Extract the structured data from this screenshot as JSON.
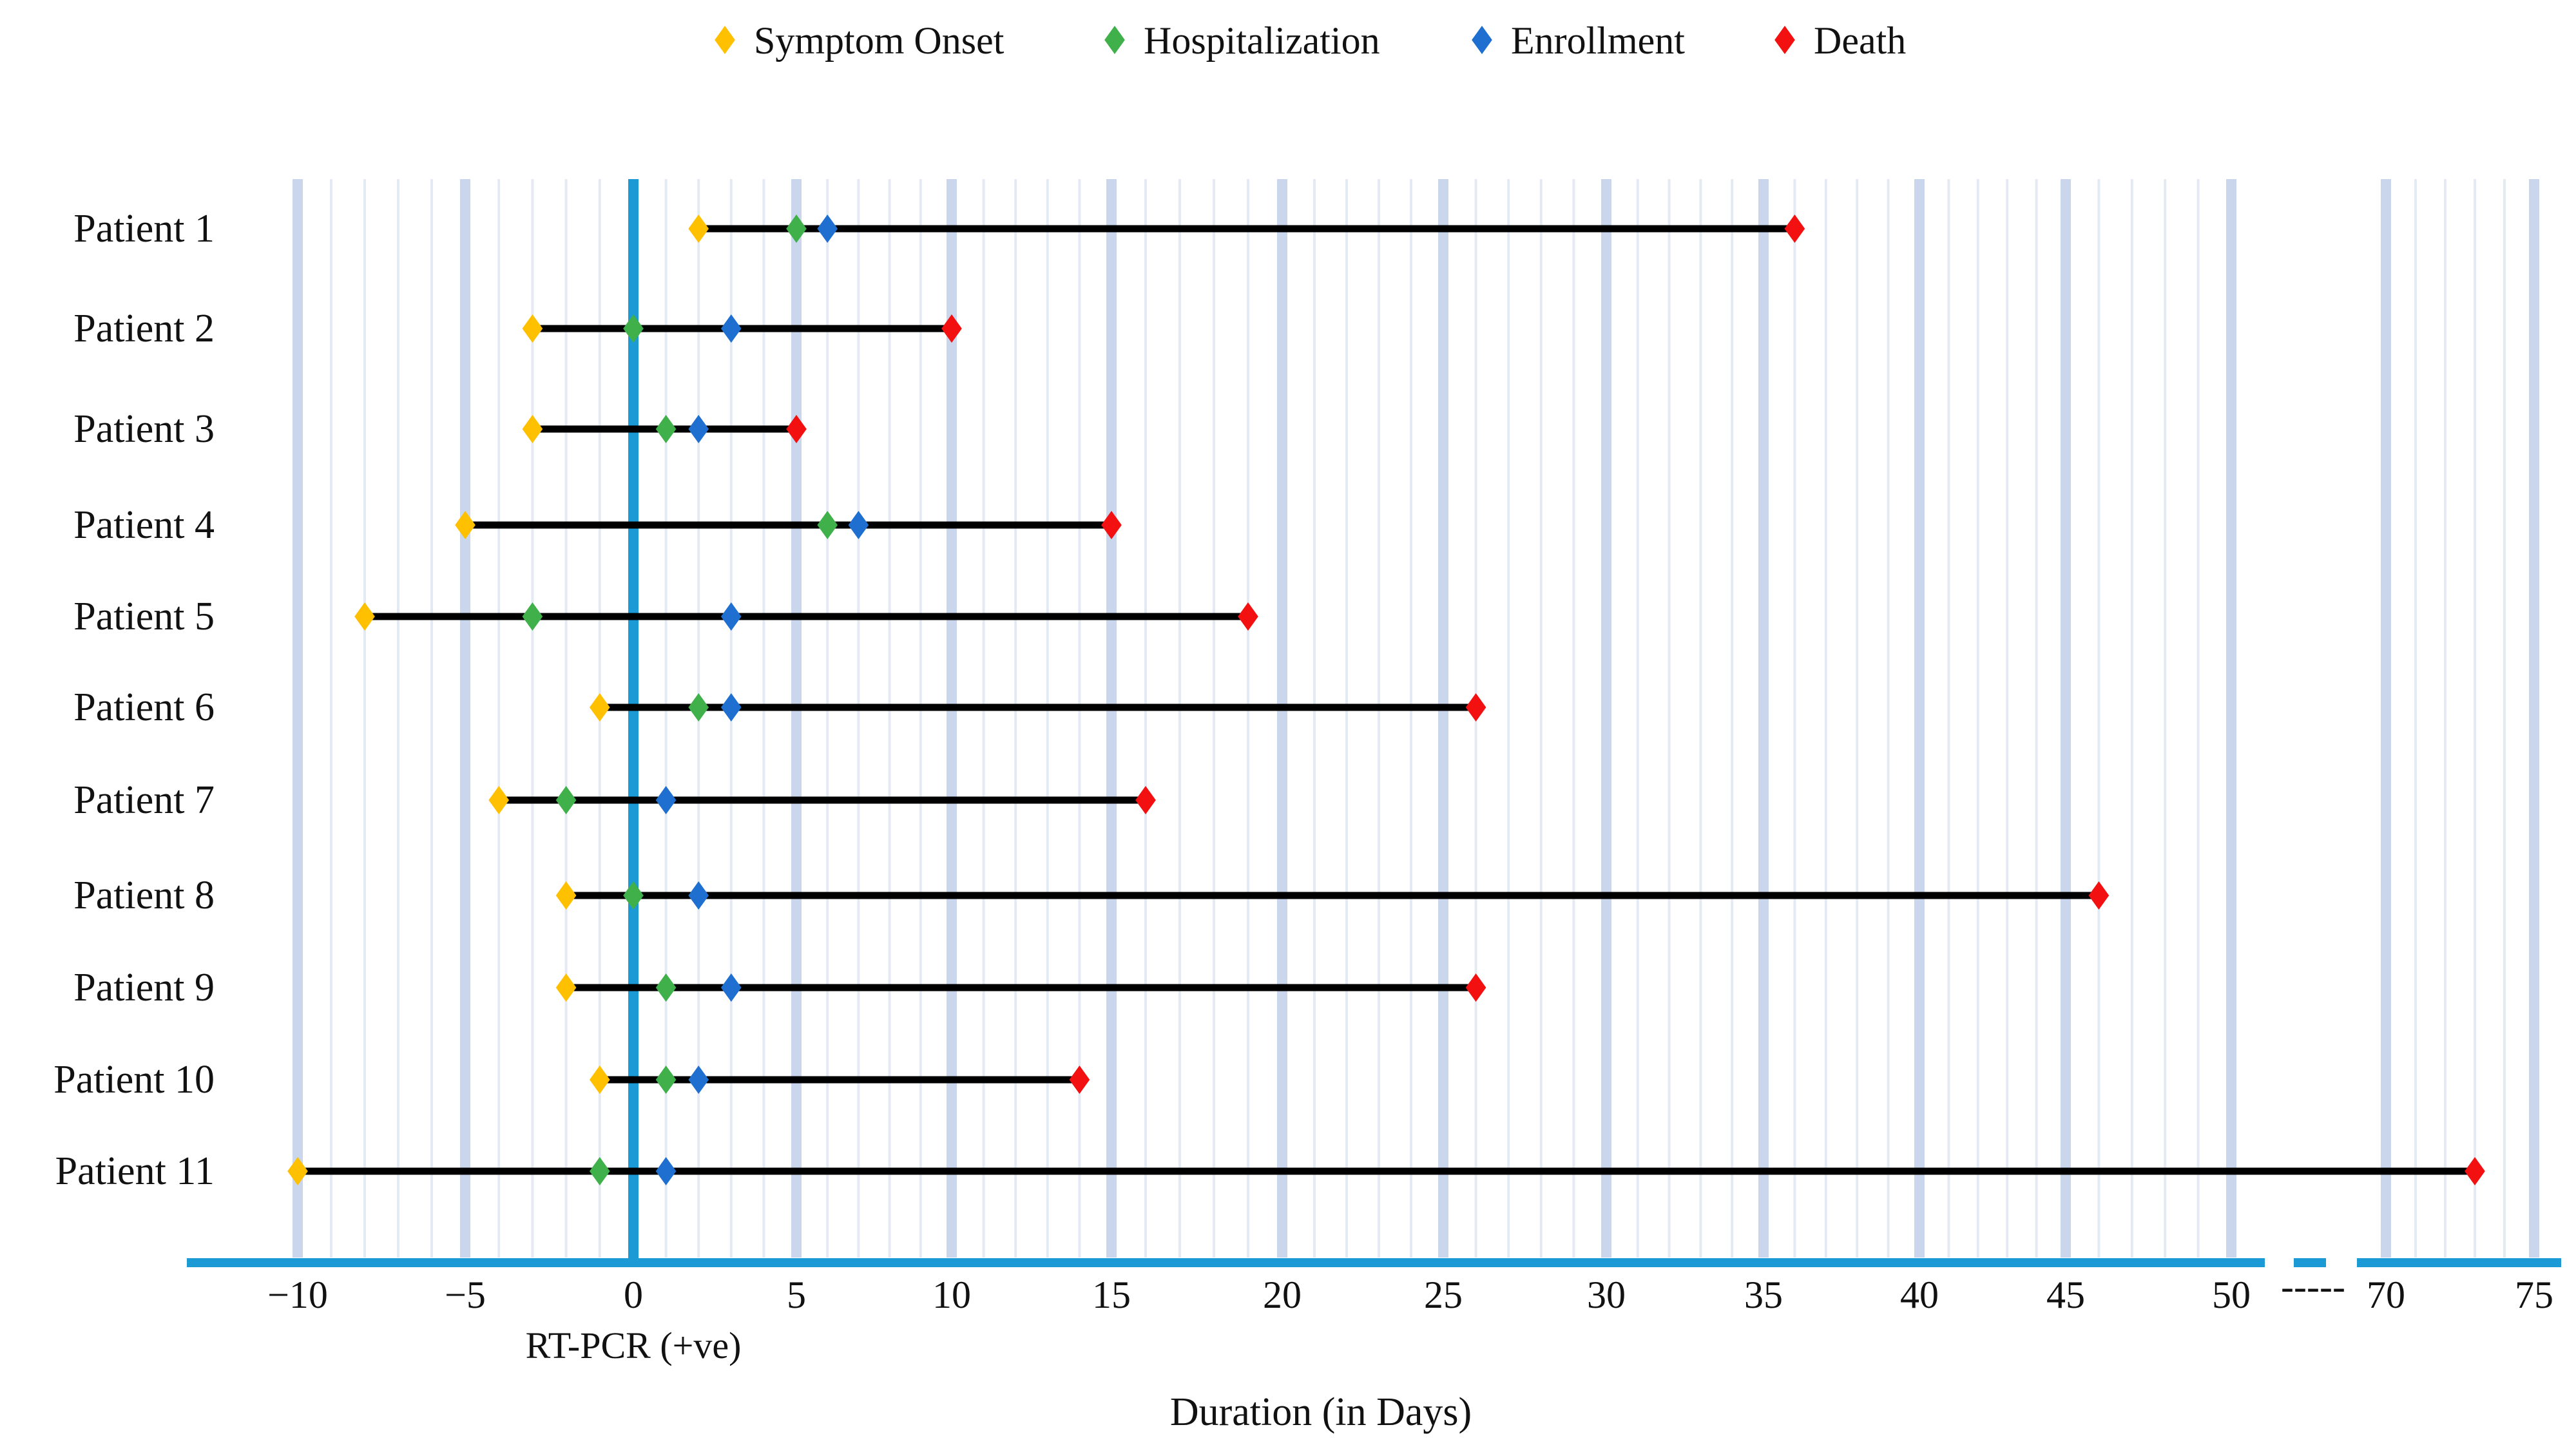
{
  "chart_data": {
    "type": "timeline",
    "title": "",
    "xlabel": "Duration (in Days)",
    "zero_label": "RT-PCR (+ve)",
    "axis_break_label": "-----",
    "x_ticks": [
      {
        "value": -10,
        "label": "−10"
      },
      {
        "value": -5,
        "label": "−5"
      },
      {
        "value": 0,
        "label": "0"
      },
      {
        "value": 5,
        "label": "5"
      },
      {
        "value": 10,
        "label": "10"
      },
      {
        "value": 15,
        "label": "15"
      },
      {
        "value": 20,
        "label": "20"
      },
      {
        "value": 25,
        "label": "25"
      },
      {
        "value": 30,
        "label": "30"
      },
      {
        "value": 35,
        "label": "35"
      },
      {
        "value": 40,
        "label": "40"
      },
      {
        "value": 45,
        "label": "45"
      },
      {
        "value": 50,
        "label": "50"
      },
      {
        "value": 70,
        "label": "70"
      },
      {
        "value": 75,
        "label": "75"
      }
    ],
    "legend": [
      {
        "key": "onset",
        "label": "Symptom Onset",
        "color": "#FFC000"
      },
      {
        "key": "hosp",
        "label": "Hospitalization",
        "color": "#3FB04A"
      },
      {
        "key": "enroll",
        "label": "Enrollment",
        "color": "#1F6FD0"
      },
      {
        "key": "death",
        "label": "Death",
        "color": "#F21010"
      }
    ],
    "patients": [
      {
        "name": "Patient 1",
        "onset": 2,
        "hosp": 5,
        "enroll": 6,
        "death": 36
      },
      {
        "name": "Patient 2",
        "onset": -3,
        "hosp": 0,
        "enroll": 3,
        "death": 10
      },
      {
        "name": "Patient 3",
        "onset": -3,
        "hosp": 1,
        "enroll": 2,
        "death": 5
      },
      {
        "name": "Patient 4",
        "onset": -5,
        "hosp": 6,
        "enroll": 7,
        "death": 15
      },
      {
        "name": "Patient 5",
        "onset": -8,
        "hosp": -3,
        "enroll": 3,
        "death": 19
      },
      {
        "name": "Patient 6",
        "onset": -1,
        "hosp": 2,
        "enroll": 3,
        "death": 26
      },
      {
        "name": "Patient 7",
        "onset": -4,
        "hosp": -2,
        "enroll": 1,
        "death": 16
      },
      {
        "name": "Patient 8",
        "onset": -2,
        "hosp": 0,
        "enroll": 2,
        "death": 46
      },
      {
        "name": "Patient 9",
        "onset": -2,
        "hosp": 1,
        "enroll": 3,
        "death": 26
      },
      {
        "name": "Patient 10",
        "onset": -1,
        "hosp": 1,
        "enroll": 2,
        "death": 14
      },
      {
        "name": "Patient 11",
        "onset": -10,
        "hosp": -1,
        "enroll": 1,
        "death": 73
      }
    ],
    "colors": {
      "major_grid": "#C9D6EC",
      "minor_grid": "#E4EAF4",
      "axis": "#1C9AD6",
      "span_line": "#000000"
    }
  }
}
